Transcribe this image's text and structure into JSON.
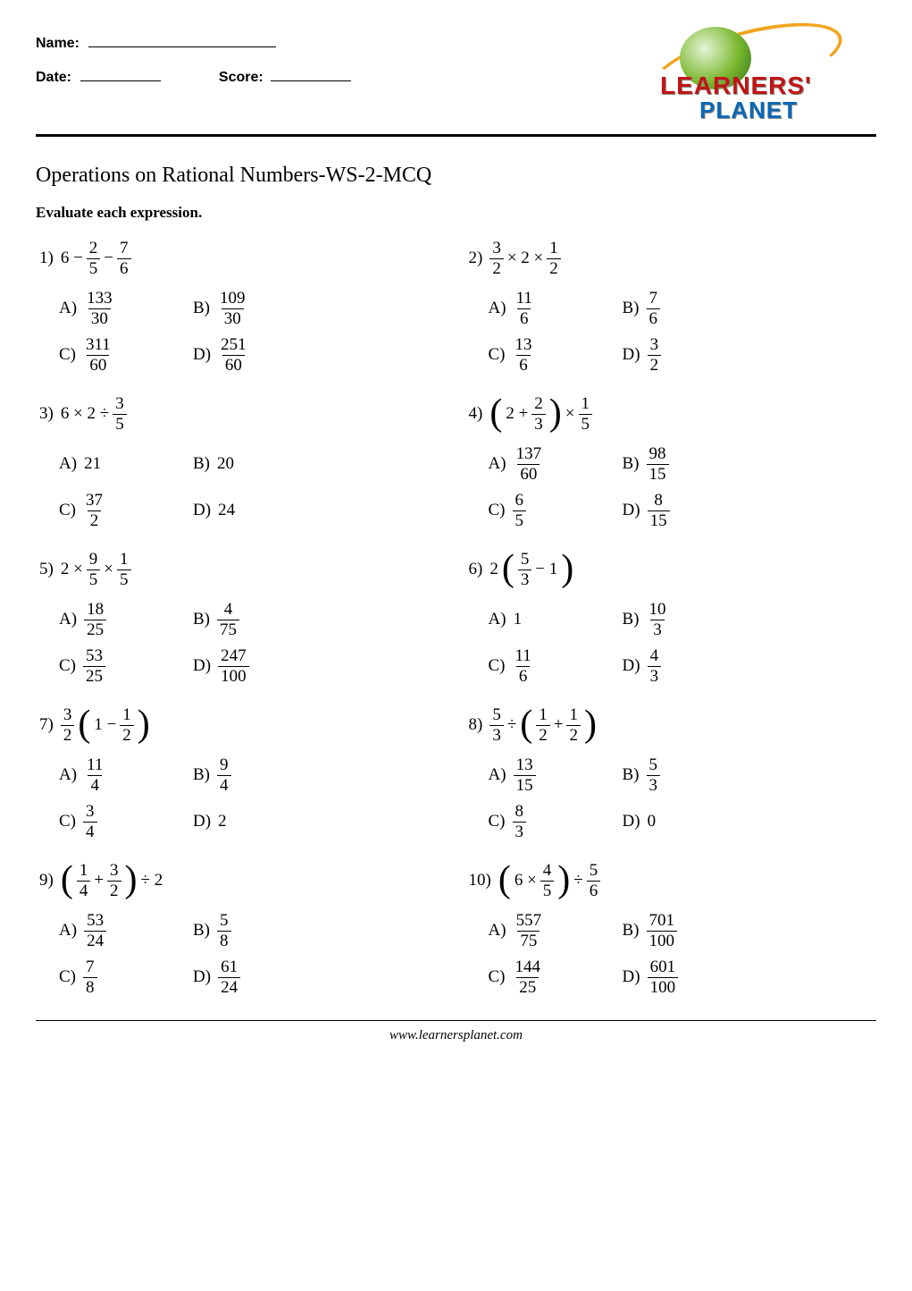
{
  "header": {
    "name_label": "Name:",
    "date_label": "Date:",
    "score_label": "Score:",
    "logo_line1": "LEARNERS'",
    "logo_line2": "PLANET"
  },
  "title": "Operations on Rational Numbers-WS-2-MCQ",
  "instruction": "Evaluate each expression.",
  "footer": "www.learnersplanet.com",
  "text_color": "#000000",
  "background_color": "#ffffff",
  "questions": [
    {
      "num": "1)",
      "expr": [
        {
          "t": "txt",
          "v": "6 −"
        },
        {
          "t": "frac",
          "n": "2",
          "d": "5"
        },
        {
          "t": "txt",
          "v": "−"
        },
        {
          "t": "frac",
          "n": "7",
          "d": "6"
        }
      ],
      "opts": {
        "A": [
          {
            "t": "frac",
            "n": "133",
            "d": "30"
          }
        ],
        "B": [
          {
            "t": "frac",
            "n": "109",
            "d": "30"
          }
        ],
        "C": [
          {
            "t": "frac",
            "n": "311",
            "d": "60"
          }
        ],
        "D": [
          {
            "t": "frac",
            "n": "251",
            "d": "60"
          }
        ]
      }
    },
    {
      "num": "2)",
      "expr": [
        {
          "t": "frac",
          "n": "3",
          "d": "2"
        },
        {
          "t": "txt",
          "v": "× 2 ×"
        },
        {
          "t": "frac",
          "n": "1",
          "d": "2"
        }
      ],
      "opts": {
        "A": [
          {
            "t": "frac",
            "n": "11",
            "d": "6"
          }
        ],
        "B": [
          {
            "t": "frac",
            "n": "7",
            "d": "6"
          }
        ],
        "C": [
          {
            "t": "frac",
            "n": "13",
            "d": "6"
          }
        ],
        "D": [
          {
            "t": "frac",
            "n": "3",
            "d": "2"
          }
        ]
      }
    },
    {
      "num": "3)",
      "expr": [
        {
          "t": "txt",
          "v": "6 × 2 ÷"
        },
        {
          "t": "frac",
          "n": "3",
          "d": "5"
        }
      ],
      "opts": {
        "A": [
          {
            "t": "txt",
            "v": "21"
          }
        ],
        "B": [
          {
            "t": "txt",
            "v": "20"
          }
        ],
        "C": [
          {
            "t": "frac",
            "n": "37",
            "d": "2"
          }
        ],
        "D": [
          {
            "t": "txt",
            "v": "24"
          }
        ]
      }
    },
    {
      "num": "4)",
      "expr": [
        {
          "t": "lp"
        },
        {
          "t": "txt",
          "v": "2 +"
        },
        {
          "t": "frac",
          "n": "2",
          "d": "3"
        },
        {
          "t": "rp"
        },
        {
          "t": "txt",
          "v": "×"
        },
        {
          "t": "frac",
          "n": "1",
          "d": "5"
        }
      ],
      "opts": {
        "A": [
          {
            "t": "frac",
            "n": "137",
            "d": "60"
          }
        ],
        "B": [
          {
            "t": "frac",
            "n": "98",
            "d": "15"
          }
        ],
        "C": [
          {
            "t": "frac",
            "n": "6",
            "d": "5"
          }
        ],
        "D": [
          {
            "t": "frac",
            "n": "8",
            "d": "15"
          }
        ]
      }
    },
    {
      "num": "5)",
      "expr": [
        {
          "t": "txt",
          "v": "2 ×"
        },
        {
          "t": "frac",
          "n": "9",
          "d": "5"
        },
        {
          "t": "txt",
          "v": "×"
        },
        {
          "t": "frac",
          "n": "1",
          "d": "5"
        }
      ],
      "opts": {
        "A": [
          {
            "t": "frac",
            "n": "18",
            "d": "25"
          }
        ],
        "B": [
          {
            "t": "frac",
            "n": "4",
            "d": "75"
          }
        ],
        "C": [
          {
            "t": "frac",
            "n": "53",
            "d": "25"
          }
        ],
        "D": [
          {
            "t": "frac",
            "n": "247",
            "d": "100"
          }
        ]
      }
    },
    {
      "num": "6)",
      "expr": [
        {
          "t": "txt",
          "v": "2"
        },
        {
          "t": "lp"
        },
        {
          "t": "frac",
          "n": "5",
          "d": "3"
        },
        {
          "t": "txt",
          "v": "− 1"
        },
        {
          "t": "rp"
        }
      ],
      "opts": {
        "A": [
          {
            "t": "txt",
            "v": "1"
          }
        ],
        "B": [
          {
            "t": "frac",
            "n": "10",
            "d": "3"
          }
        ],
        "C": [
          {
            "t": "frac",
            "n": "11",
            "d": "6"
          }
        ],
        "D": [
          {
            "t": "frac",
            "n": "4",
            "d": "3"
          }
        ]
      }
    },
    {
      "num": "7)",
      "expr": [
        {
          "t": "frac",
          "n": "3",
          "d": "2"
        },
        {
          "t": "lp"
        },
        {
          "t": "txt",
          "v": "1 −"
        },
        {
          "t": "frac",
          "n": "1",
          "d": "2"
        },
        {
          "t": "rp"
        }
      ],
      "opts": {
        "A": [
          {
            "t": "frac",
            "n": "11",
            "d": "4"
          }
        ],
        "B": [
          {
            "t": "frac",
            "n": "9",
            "d": "4"
          }
        ],
        "C": [
          {
            "t": "frac",
            "n": "3",
            "d": "4"
          }
        ],
        "D": [
          {
            "t": "txt",
            "v": "2"
          }
        ]
      }
    },
    {
      "num": "8)",
      "expr": [
        {
          "t": "frac",
          "n": "5",
          "d": "3"
        },
        {
          "t": "txt",
          "v": "÷"
        },
        {
          "t": "lp"
        },
        {
          "t": "frac",
          "n": "1",
          "d": "2"
        },
        {
          "t": "txt",
          "v": "+"
        },
        {
          "t": "frac",
          "n": "1",
          "d": "2"
        },
        {
          "t": "rp"
        }
      ],
      "opts": {
        "A": [
          {
            "t": "frac",
            "n": "13",
            "d": "15"
          }
        ],
        "B": [
          {
            "t": "frac",
            "n": "5",
            "d": "3"
          }
        ],
        "C": [
          {
            "t": "frac",
            "n": "8",
            "d": "3"
          }
        ],
        "D": [
          {
            "t": "txt",
            "v": "0"
          }
        ]
      }
    },
    {
      "num": "9)",
      "expr": [
        {
          "t": "lp"
        },
        {
          "t": "frac",
          "n": "1",
          "d": "4"
        },
        {
          "t": "txt",
          "v": "+"
        },
        {
          "t": "frac",
          "n": "3",
          "d": "2"
        },
        {
          "t": "rp"
        },
        {
          "t": "txt",
          "v": "÷ 2"
        }
      ],
      "opts": {
        "A": [
          {
            "t": "frac",
            "n": "53",
            "d": "24"
          }
        ],
        "B": [
          {
            "t": "frac",
            "n": "5",
            "d": "8"
          }
        ],
        "C": [
          {
            "t": "frac",
            "n": "7",
            "d": "8"
          }
        ],
        "D": [
          {
            "t": "frac",
            "n": "61",
            "d": "24"
          }
        ]
      }
    },
    {
      "num": "10)",
      "expr": [
        {
          "t": "lp"
        },
        {
          "t": "txt",
          "v": "6 ×"
        },
        {
          "t": "frac",
          "n": "4",
          "d": "5"
        },
        {
          "t": "rp"
        },
        {
          "t": "txt",
          "v": "÷"
        },
        {
          "t": "frac",
          "n": "5",
          "d": "6"
        }
      ],
      "opts": {
        "A": [
          {
            "t": "frac",
            "n": "557",
            "d": "75"
          }
        ],
        "B": [
          {
            "t": "frac",
            "n": "701",
            "d": "100"
          }
        ],
        "C": [
          {
            "t": "frac",
            "n": "144",
            "d": "25"
          }
        ],
        "D": [
          {
            "t": "frac",
            "n": "601",
            "d": "100"
          }
        ]
      }
    }
  ]
}
